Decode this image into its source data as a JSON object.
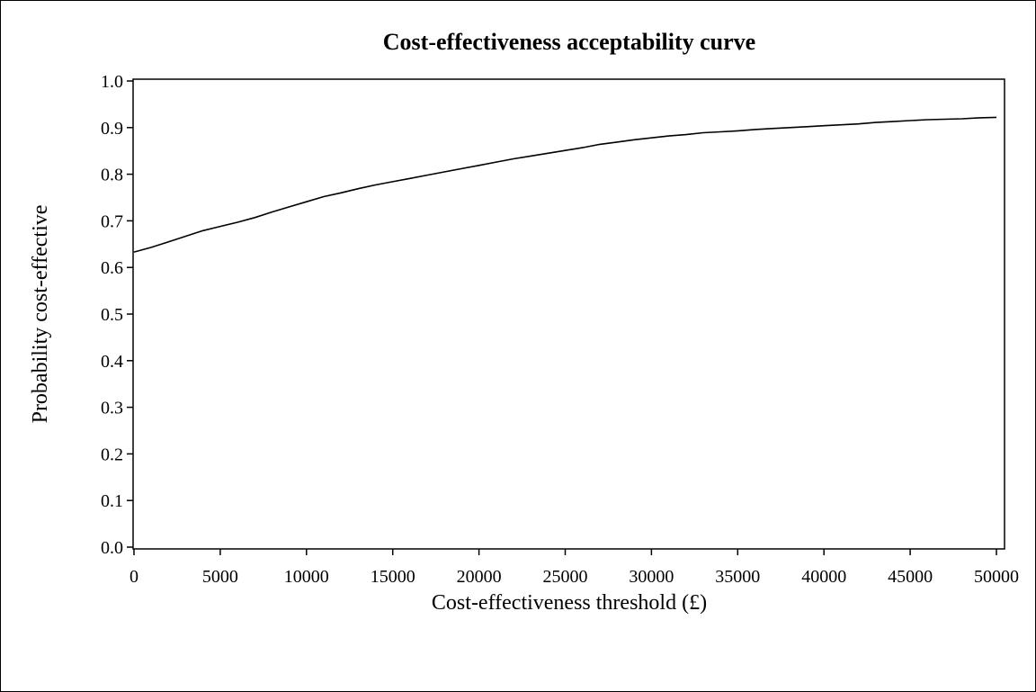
{
  "chart_data": {
    "type": "line",
    "title": "Cost-effectiveness acceptability curve",
    "xlabel": "Cost-effectiveness threshold (£)",
    "ylabel": "Probability cost-effective",
    "xlim": [
      0,
      50000
    ],
    "ylim": [
      0.0,
      1.0
    ],
    "x_ticks": [
      0,
      5000,
      10000,
      15000,
      20000,
      25000,
      30000,
      35000,
      40000,
      45000,
      50000
    ],
    "x_tick_labels": [
      "0",
      "5000",
      "10000",
      "15000",
      "20000",
      "25000",
      "30000",
      "35000",
      "40000",
      "45000",
      "50000"
    ],
    "y_ticks": [
      0.0,
      0.1,
      0.2,
      0.3,
      0.4,
      0.5,
      0.6,
      0.7,
      0.8,
      0.9,
      1.0
    ],
    "y_tick_labels": [
      "0.0",
      "0.1",
      "0.2",
      "0.3",
      "0.4",
      "0.5",
      "0.6",
      "0.7",
      "0.8",
      "0.9",
      "1.0"
    ],
    "grid": false,
    "line_color": "#000000",
    "series": [
      {
        "x": [
          0,
          1000,
          2000,
          3000,
          4000,
          5000,
          6000,
          7000,
          8000,
          9000,
          10000,
          11000,
          12000,
          13000,
          14000,
          15000,
          16000,
          17000,
          18000,
          19000,
          20000,
          21000,
          22000,
          23000,
          24000,
          25000,
          26000,
          27000,
          28000,
          29000,
          30000,
          31000,
          32000,
          33000,
          34000,
          35000,
          36000,
          37000,
          38000,
          39000,
          40000,
          41000,
          42000,
          43000,
          44000,
          45000,
          46000,
          47000,
          48000,
          49000,
          50000
        ],
        "values": [
          0.633,
          0.643,
          0.655,
          0.667,
          0.679,
          0.688,
          0.697,
          0.707,
          0.719,
          0.73,
          0.741,
          0.752,
          0.76,
          0.769,
          0.777,
          0.784,
          0.791,
          0.798,
          0.805,
          0.812,
          0.819,
          0.826,
          0.833,
          0.839,
          0.845,
          0.851,
          0.857,
          0.864,
          0.869,
          0.874,
          0.878,
          0.882,
          0.885,
          0.889,
          0.891,
          0.893,
          0.896,
          0.898,
          0.9,
          0.902,
          0.904,
          0.906,
          0.908,
          0.911,
          0.913,
          0.915,
          0.917,
          0.918,
          0.919,
          0.921,
          0.922
        ]
      }
    ]
  }
}
